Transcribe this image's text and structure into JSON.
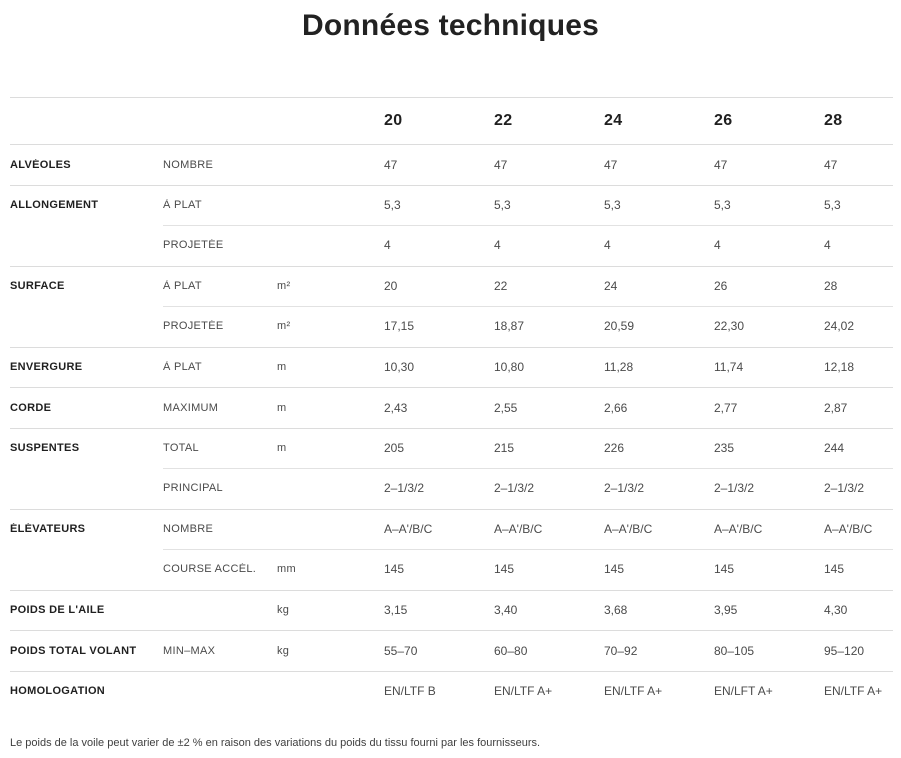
{
  "page": {
    "title": "Données techniques",
    "footnote": "Le poids de la voile peut varier de ±2 % en raison des variations du poids du tissu fourni par les fournisseurs."
  },
  "colors": {
    "text_primary": "#1f1f1f",
    "text_secondary": "#4a4a4a",
    "divider": "#dcdcdc"
  },
  "table": {
    "size_headers": [
      "20",
      "22",
      "24",
      "26",
      "28"
    ],
    "rows": [
      {
        "category": "ALVÉOLES",
        "sub": "NOMBRE",
        "unit": "",
        "values": [
          "47",
          "47",
          "47",
          "47",
          "47"
        ],
        "divider": "full"
      },
      {
        "category": "ALLONGEMENT",
        "sub": "À PLAT",
        "unit": "",
        "values": [
          "5,3",
          "5,3",
          "5,3",
          "5,3",
          "5,3"
        ],
        "divider": "full"
      },
      {
        "category": "",
        "sub": "PROJETÉE",
        "unit": "",
        "values": [
          "4",
          "4",
          "4",
          "4",
          "4"
        ],
        "divider": "indent"
      },
      {
        "category": "SURFACE",
        "sub": "À PLAT",
        "unit": "m²",
        "values": [
          "20",
          "22",
          "24",
          "26",
          "28"
        ],
        "divider": "full"
      },
      {
        "category": "",
        "sub": "PROJETÉE",
        "unit": "m²",
        "values": [
          "17,15",
          "18,87",
          "20,59",
          "22,30",
          "24,02"
        ],
        "divider": "indent"
      },
      {
        "category": "ENVERGURE",
        "sub": "À PLAT",
        "unit": "m",
        "values": [
          "10,30",
          "10,80",
          "11,28",
          "11,74",
          "12,18"
        ],
        "divider": "full"
      },
      {
        "category": "CORDE",
        "sub": "MAXIMUM",
        "unit": "m",
        "values": [
          "2,43",
          "2,55",
          "2,66",
          "2,77",
          "2,87"
        ],
        "divider": "full"
      },
      {
        "category": "SUSPENTES",
        "sub": "TOTAL",
        "unit": "m",
        "values": [
          "205",
          "215",
          "226",
          "235",
          "244"
        ],
        "divider": "full"
      },
      {
        "category": "",
        "sub": "PRINCIPAL",
        "unit": "",
        "values": [
          "2–1/3/2",
          "2–1/3/2",
          "2–1/3/2",
          "2–1/3/2",
          "2–1/3/2"
        ],
        "divider": "indent"
      },
      {
        "category": "ÉLÉVATEURS",
        "sub": "NOMBRE",
        "unit": "",
        "values": [
          "A–A'/B/C",
          "A–A'/B/C",
          "A–A'/B/C",
          "A–A'/B/C",
          "A–A'/B/C"
        ],
        "divider": "full"
      },
      {
        "category": "",
        "sub": "COURSE ACCÉL.",
        "unit": "mm",
        "values": [
          "145",
          "145",
          "145",
          "145",
          "145"
        ],
        "divider": "indent"
      },
      {
        "category": "POIDS DE L'AILE",
        "sub": "",
        "unit": "kg",
        "values": [
          "3,15",
          "3,40",
          "3,68",
          "3,95",
          "4,30"
        ],
        "divider": "full"
      },
      {
        "category": "POIDS TOTAL VOLANT",
        "sub": "MIN–MAX",
        "unit": "kg",
        "values": [
          "55–70",
          "60–80",
          "70–92",
          "80–105",
          "95–120"
        ],
        "divider": "full"
      },
      {
        "category": "HOMOLOGATION",
        "sub": "",
        "unit": "",
        "values": [
          "EN/LTF B",
          "EN/LTF A+",
          "EN/LTF A+",
          "EN/LFT A+",
          "EN/LTF A+"
        ],
        "divider": "full"
      }
    ]
  }
}
